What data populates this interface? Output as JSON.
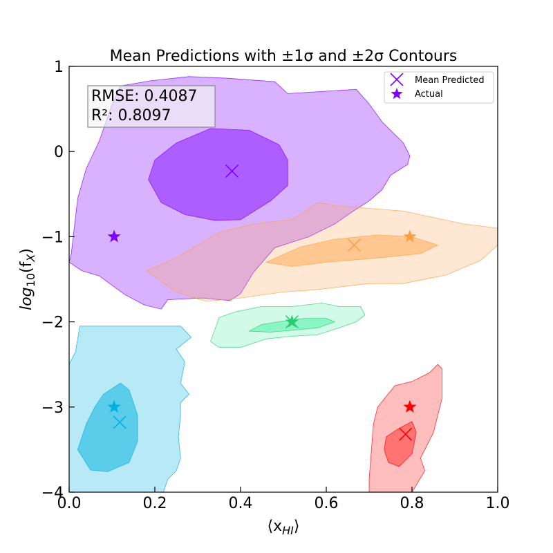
{
  "chart_data": {
    "type": "scatter",
    "title": "Mean Predictions with  ±1σ and ±2σ Contours",
    "xlabel_main": "⟨x",
    "xlabel_sub": "HI",
    "xlabel_close": "⟩",
    "ylabel_main": "log",
    "ylabel_sub": "10",
    "ylabel_rest": "(f",
    "ylabel_sub2": "X",
    "ylabel_close": ")",
    "xlim": [
      0.0,
      1.0
    ],
    "ylim": [
      -4,
      1
    ],
    "xticks": [
      0.0,
      0.2,
      0.4,
      0.6,
      0.8,
      1.0
    ],
    "xtick_labels": [
      "0.0",
      "0.2",
      "0.4",
      "0.6",
      "0.8",
      "1.0"
    ],
    "yticks": [
      1,
      0,
      -1,
      -2,
      -3,
      -4
    ],
    "ytick_labels": [
      "1",
      "0",
      "−1",
      "−2",
      "−3",
      "−4"
    ],
    "metrics": {
      "rmse": "RMSE: 0.4087",
      "r2": "R²: 0.8097"
    },
    "legend": {
      "placement": "top-right",
      "mean_label": "Mean Predicted",
      "actual_label": "Actual",
      "color": "#7f00ff"
    },
    "series": [
      {
        "color": "#7f00ff",
        "mean": [
          0.38,
          -0.23
        ],
        "actual": [
          0.105,
          -1.0
        ],
        "contour_2sigma": [
          [
            0.0,
            -1.3
          ],
          [
            0.005,
            -1.2
          ],
          [
            0.02,
            -0.55
          ],
          [
            0.04,
            -0.2
          ],
          [
            0.07,
            0.12
          ],
          [
            0.1,
            0.55
          ],
          [
            0.12,
            0.77
          ],
          [
            0.19,
            0.83
          ],
          [
            0.28,
            0.88
          ],
          [
            0.37,
            0.86
          ],
          [
            0.48,
            0.82
          ],
          [
            0.51,
            0.68
          ],
          [
            0.67,
            0.73
          ],
          [
            0.7,
            0.56
          ],
          [
            0.73,
            0.35
          ],
          [
            0.78,
            0.1
          ],
          [
            0.795,
            -0.05
          ],
          [
            0.79,
            -0.15
          ],
          [
            0.75,
            -0.28
          ],
          [
            0.73,
            -0.45
          ],
          [
            0.7,
            -0.58
          ],
          [
            0.66,
            -0.71
          ],
          [
            0.62,
            -0.85
          ],
          [
            0.56,
            -1.0
          ],
          [
            0.48,
            -1.13
          ],
          [
            0.43,
            -1.42
          ],
          [
            0.4,
            -1.67
          ],
          [
            0.375,
            -1.75
          ],
          [
            0.31,
            -1.72
          ],
          [
            0.23,
            -1.74
          ],
          [
            0.215,
            -1.85
          ],
          [
            0.175,
            -1.8
          ],
          [
            0.13,
            -1.68
          ],
          [
            0.07,
            -1.46
          ],
          [
            0.03,
            -1.4
          ],
          [
            0.0,
            -1.3
          ]
        ],
        "contour_1sigma": [
          [
            0.185,
            -0.33
          ],
          [
            0.2,
            -0.1
          ],
          [
            0.25,
            0.1
          ],
          [
            0.33,
            0.27
          ],
          [
            0.42,
            0.25
          ],
          [
            0.49,
            0.08
          ],
          [
            0.51,
            -0.1
          ],
          [
            0.51,
            -0.4
          ],
          [
            0.47,
            -0.58
          ],
          [
            0.4,
            -0.8
          ],
          [
            0.34,
            -0.81
          ],
          [
            0.27,
            -0.74
          ],
          [
            0.215,
            -0.6
          ],
          [
            0.185,
            -0.33
          ]
        ],
        "fill_2sigma": "rgba(127,0,255,0.30)",
        "fill_1sigma": "rgba(127,0,255,0.48)"
      },
      {
        "color": "#ff9f40",
        "mean": [
          0.665,
          -1.1
        ],
        "actual": [
          0.795,
          -1.0
        ],
        "contour_2sigma": [
          [
            0.18,
            -1.4
          ],
          [
            0.25,
            -1.25
          ],
          [
            0.35,
            -0.95
          ],
          [
            0.43,
            -0.85
          ],
          [
            0.52,
            -0.8
          ],
          [
            0.58,
            -0.6
          ],
          [
            0.63,
            -0.64
          ],
          [
            0.78,
            -0.7
          ],
          [
            0.92,
            -0.85
          ],
          [
            1.0,
            -0.9
          ],
          [
            1.0,
            -1.1
          ],
          [
            0.96,
            -1.28
          ],
          [
            0.88,
            -1.45
          ],
          [
            0.78,
            -1.55
          ],
          [
            0.7,
            -1.55
          ],
          [
            0.58,
            -1.62
          ],
          [
            0.5,
            -1.65
          ],
          [
            0.4,
            -1.72
          ],
          [
            0.32,
            -1.76
          ],
          [
            0.25,
            -1.65
          ],
          [
            0.18,
            -1.4
          ]
        ],
        "contour_1sigma": [
          [
            0.46,
            -1.3
          ],
          [
            0.54,
            -1.12
          ],
          [
            0.62,
            -1.03
          ],
          [
            0.72,
            -0.98
          ],
          [
            0.8,
            -1.0
          ],
          [
            0.86,
            -1.1
          ],
          [
            0.82,
            -1.2
          ],
          [
            0.72,
            -1.25
          ],
          [
            0.6,
            -1.3
          ],
          [
            0.52,
            -1.35
          ],
          [
            0.46,
            -1.3
          ]
        ],
        "fill_2sigma": "rgba(255,165,79,0.25)",
        "fill_1sigma": "rgba(255,165,79,0.50)"
      },
      {
        "color": "#2ecc71",
        "mean": [
          0.52,
          -2.0
        ],
        "actual": [
          0.52,
          -2.0
        ],
        "contour_2sigma": [
          [
            0.33,
            -2.23
          ],
          [
            0.35,
            -1.95
          ],
          [
            0.39,
            -1.88
          ],
          [
            0.45,
            -1.82
          ],
          [
            0.52,
            -1.82
          ],
          [
            0.59,
            -1.78
          ],
          [
            0.63,
            -1.82
          ],
          [
            0.68,
            -1.82
          ],
          [
            0.69,
            -1.92
          ],
          [
            0.67,
            -2.0
          ],
          [
            0.63,
            -2.07
          ],
          [
            0.58,
            -2.15
          ],
          [
            0.52,
            -2.17
          ],
          [
            0.46,
            -2.2
          ],
          [
            0.4,
            -2.3
          ],
          [
            0.35,
            -2.3
          ],
          [
            0.33,
            -2.23
          ]
        ],
        "contour_1sigma": [
          [
            0.42,
            -2.11
          ],
          [
            0.45,
            -2.03
          ],
          [
            0.5,
            -1.99
          ],
          [
            0.55,
            -1.96
          ],
          [
            0.6,
            -1.96
          ],
          [
            0.62,
            -2.0
          ],
          [
            0.58,
            -2.07
          ],
          [
            0.52,
            -2.1
          ],
          [
            0.47,
            -2.12
          ],
          [
            0.42,
            -2.11
          ]
        ],
        "fill_2sigma": "rgba(46,235,150,0.22)",
        "fill_1sigma": "rgba(46,235,150,0.42)"
      },
      {
        "color": "#00b0e0",
        "mean": [
          0.118,
          -3.18
        ],
        "actual": [
          0.105,
          -3.0
        ],
        "contour_2sigma": [
          [
            0.0,
            -2.5
          ],
          [
            0.015,
            -2.35
          ],
          [
            0.025,
            -2.05
          ],
          [
            0.26,
            -2.05
          ],
          [
            0.285,
            -2.18
          ],
          [
            0.25,
            -2.32
          ],
          [
            0.27,
            -2.47
          ],
          [
            0.265,
            -2.6
          ],
          [
            0.26,
            -2.72
          ],
          [
            0.28,
            -2.85
          ],
          [
            0.26,
            -2.95
          ],
          [
            0.26,
            -3.1
          ],
          [
            0.255,
            -3.35
          ],
          [
            0.26,
            -3.6
          ],
          [
            0.25,
            -3.75
          ],
          [
            0.23,
            -3.85
          ],
          [
            0.22,
            -4.0
          ],
          [
            0.0,
            -4.0
          ],
          [
            0.0,
            -2.5
          ]
        ],
        "contour_1sigma": [
          [
            0.02,
            -3.5
          ],
          [
            0.04,
            -3.2
          ],
          [
            0.06,
            -3.0
          ],
          [
            0.08,
            -2.85
          ],
          [
            0.12,
            -2.72
          ],
          [
            0.14,
            -2.8
          ],
          [
            0.16,
            -3.1
          ],
          [
            0.16,
            -3.4
          ],
          [
            0.14,
            -3.65
          ],
          [
            0.09,
            -3.76
          ],
          [
            0.05,
            -3.74
          ],
          [
            0.02,
            -3.5
          ]
        ],
        "fill_2sigma": "rgba(0,176,224,0.28)",
        "fill_1sigma": "rgba(0,176,224,0.50)"
      },
      {
        "color": "#ff0000",
        "mean": [
          0.785,
          -3.32
        ],
        "actual": [
          0.795,
          -3.0
        ],
        "contour_2sigma": [
          [
            0.7,
            -3.85
          ],
          [
            0.71,
            -3.2
          ],
          [
            0.72,
            -3.0
          ],
          [
            0.76,
            -2.75
          ],
          [
            0.8,
            -2.7
          ],
          [
            0.84,
            -2.6
          ],
          [
            0.86,
            -2.5
          ],
          [
            0.87,
            -2.55
          ],
          [
            0.87,
            -2.9
          ],
          [
            0.85,
            -3.3
          ],
          [
            0.82,
            -3.6
          ],
          [
            0.83,
            -3.75
          ],
          [
            0.8,
            -4.0
          ],
          [
            0.7,
            -4.0
          ],
          [
            0.7,
            -3.85
          ]
        ],
        "contour_1sigma": [
          [
            0.735,
            -3.5
          ],
          [
            0.74,
            -3.35
          ],
          [
            0.77,
            -3.25
          ],
          [
            0.8,
            -3.17
          ],
          [
            0.81,
            -3.3
          ],
          [
            0.8,
            -3.55
          ],
          [
            0.77,
            -3.7
          ],
          [
            0.745,
            -3.65
          ],
          [
            0.735,
            -3.5
          ]
        ],
        "fill_2sigma": "rgba(255,40,40,0.30)",
        "fill_1sigma": "rgba(255,40,40,0.50)"
      }
    ]
  }
}
